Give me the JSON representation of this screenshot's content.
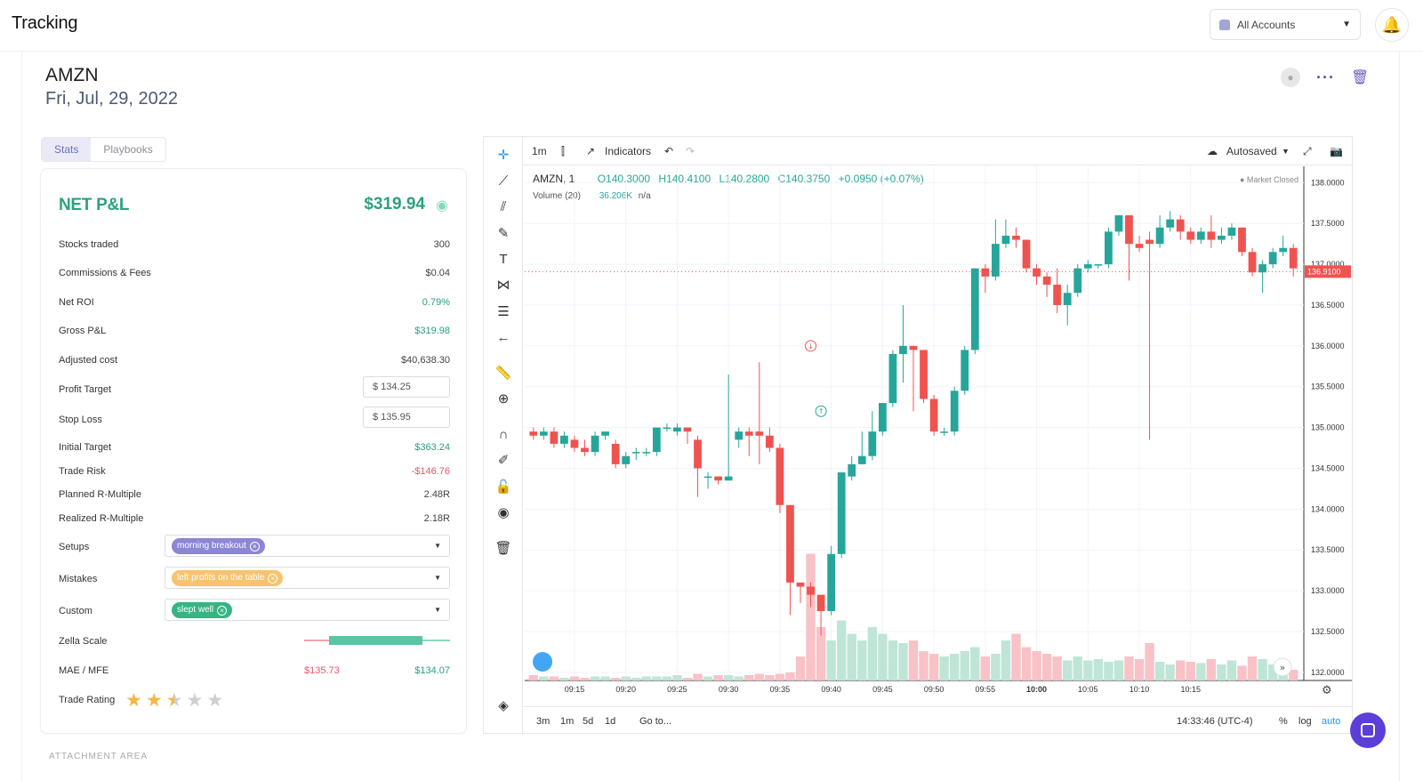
{
  "app": {
    "title": "Tracking"
  },
  "account": {
    "label": "All Accounts"
  },
  "trade": {
    "symbol": "AMZN",
    "date": "Fri, Jul, 29, 2022"
  },
  "tabs": [
    {
      "label": "Stats"
    },
    {
      "label": "Playbooks"
    }
  ],
  "stats": {
    "net_label": "NET P&L",
    "net_value": "$319.94",
    "rows": [
      {
        "label": "Stocks traded",
        "value": "300"
      },
      {
        "label": "Commissions & Fees",
        "value": "$0.04"
      },
      {
        "label": "Net ROI",
        "value": "0.79%"
      },
      {
        "label": "Gross P&L",
        "value": "$319.98"
      },
      {
        "label": "Adjusted cost",
        "value": "$40,638.30"
      },
      {
        "label": "Profit Target",
        "value": "$  134.25"
      },
      {
        "label": "Stop Loss",
        "value": "$  135.95"
      },
      {
        "label": "Initial Target",
        "value": "$363.24"
      },
      {
        "label": "Trade Risk",
        "value": "-$146.76"
      },
      {
        "label": "Planned R-Multiple",
        "value": "2.48R"
      },
      {
        "label": "Realized R-Multiple",
        "value": "2.18R"
      },
      {
        "label": "Setups",
        "value": "morning breakout"
      },
      {
        "label": "Mistakes",
        "value": "left profits on the table"
      },
      {
        "label": "Custom",
        "value": "slept well"
      },
      {
        "label": "Zella Scale",
        "value": ""
      },
      {
        "label": "MAE / MFE",
        "mae": "$135.73",
        "mfe": "$134.07"
      },
      {
        "label": "Trade Rating",
        "rating": 2.5
      }
    ],
    "attachment_label": "ATTACHMENT AREA"
  },
  "chart_toolbar": {
    "interval": "1m",
    "indicators": "Indicators",
    "autosaved": "Autosaved"
  },
  "chart_legend": {
    "symbol": "AMZN, 1",
    "open": "O140.3000",
    "high": "H140.4100",
    "low": "L140.2800",
    "close": "C140.3750",
    "change": "+0.0950 (+0.07%)",
    "volume_label": "Volume (20)",
    "volume_value": "36.206K",
    "volume_na": "n/a",
    "market_status": "● Market Closed"
  },
  "chart_bottom": {
    "ranges": [
      "3m",
      "1m",
      "5d",
      "1d"
    ],
    "goto": "Go to...",
    "time": "14:33:46 (UTC-4)",
    "pct": "%",
    "log": "log",
    "auto": "auto"
  },
  "chart_data": {
    "type": "candlestick",
    "last_price_label": "136.9100",
    "y_ticks": [
      "138.0000",
      "137.5000",
      "137.0000",
      "136.5000",
      "136.0000",
      "135.5000",
      "135.0000",
      "134.5000",
      "134.0000",
      "133.5000",
      "133.0000",
      "132.5000",
      "132.0000"
    ],
    "y_range": [
      131.9,
      138.2
    ],
    "x_ticks": [
      "09:15",
      "09:20",
      "09:25",
      "09:30",
      "09:35",
      "09:40",
      "09:45",
      "09:50",
      "09:55",
      "10:00",
      "10:05",
      "10:10",
      "10:15"
    ],
    "candles": [
      [
        134.95,
        134.9,
        135.0,
        134.85
      ],
      [
        134.9,
        134.95,
        135.0,
        134.85
      ],
      [
        134.95,
        134.8,
        135.0,
        134.75
      ],
      [
        134.8,
        134.9,
        134.95,
        134.75
      ],
      [
        134.85,
        134.75,
        134.9,
        134.7
      ],
      [
        134.75,
        134.7,
        134.85,
        134.65
      ],
      [
        134.7,
        134.9,
        134.95,
        134.65
      ],
      [
        134.9,
        134.95,
        134.95,
        134.85
      ],
      [
        134.8,
        134.55,
        134.85,
        134.5
      ],
      [
        134.55,
        134.65,
        134.7,
        134.5
      ],
      [
        134.7,
        134.7,
        134.75,
        134.6
      ],
      [
        134.7,
        134.7,
        134.75,
        134.65
      ],
      [
        134.7,
        135.0,
        135.0,
        134.65
      ],
      [
        135.0,
        135.0,
        135.05,
        134.95
      ],
      [
        134.95,
        135.0,
        135.05,
        134.9
      ],
      [
        135.0,
        134.95,
        135.0,
        134.8
      ],
      [
        134.85,
        134.5,
        134.9,
        134.15
      ],
      [
        134.4,
        134.4,
        134.45,
        134.25
      ],
      [
        134.4,
        134.35,
        134.4,
        134.3
      ],
      [
        134.35,
        134.4,
        135.65,
        134.35
      ],
      [
        134.85,
        134.95,
        135.0,
        134.75
      ],
      [
        134.95,
        134.9,
        135.0,
        134.65
      ],
      [
        134.95,
        134.9,
        135.8,
        134.55
      ],
      [
        134.9,
        134.75,
        135.0,
        134.7
      ],
      [
        134.75,
        134.05,
        134.8,
        133.95
      ],
      [
        134.05,
        133.1,
        134.05,
        132.7
      ],
      [
        133.1,
        133.05,
        133.1,
        132.85
      ],
      [
        133.05,
        132.95,
        133.1,
        132.8
      ],
      [
        132.95,
        132.75,
        132.95,
        132.45
      ],
      [
        132.75,
        133.45,
        133.55,
        132.7
      ],
      [
        133.45,
        134.45,
        134.45,
        133.4
      ],
      [
        134.4,
        134.55,
        134.65,
        134.35
      ],
      [
        134.55,
        134.65,
        134.95,
        134.55
      ],
      [
        134.65,
        134.95,
        135.2,
        134.6
      ],
      [
        134.95,
        135.3,
        135.3,
        134.9
      ],
      [
        135.3,
        135.9,
        135.95,
        135.25
      ],
      [
        135.9,
        136.0,
        136.5,
        135.55
      ],
      [
        136.0,
        135.95,
        136.0,
        135.2
      ],
      [
        135.95,
        135.35,
        135.95,
        135.3
      ],
      [
        135.35,
        134.95,
        135.4,
        134.9
      ],
      [
        134.95,
        134.95,
        135.0,
        134.9
      ],
      [
        134.95,
        135.45,
        135.5,
        134.9
      ],
      [
        135.45,
        135.95,
        136.0,
        135.4
      ],
      [
        135.95,
        136.95,
        136.95,
        135.9
      ],
      [
        136.95,
        136.85,
        137.0,
        136.65
      ],
      [
        136.85,
        137.25,
        137.55,
        136.8
      ],
      [
        137.25,
        137.35,
        137.55,
        137.2
      ],
      [
        137.35,
        137.3,
        137.45,
        137.2
      ],
      [
        137.3,
        136.95,
        137.3,
        136.9
      ],
      [
        136.95,
        136.85,
        137.0,
        136.75
      ],
      [
        136.85,
        136.75,
        136.9,
        136.6
      ],
      [
        136.75,
        136.5,
        136.95,
        136.4
      ],
      [
        136.5,
        136.65,
        136.75,
        136.25
      ],
      [
        136.65,
        136.95,
        137.0,
        136.6
      ],
      [
        136.95,
        137.0,
        137.05,
        136.9
      ],
      [
        137.0,
        137.0,
        137.0,
        136.95
      ],
      [
        137.0,
        137.4,
        137.45,
        136.95
      ],
      [
        137.4,
        137.6,
        137.6,
        137.35
      ],
      [
        137.6,
        137.25,
        137.6,
        136.8
      ],
      [
        137.25,
        137.2,
        137.35,
        137.15
      ],
      [
        137.3,
        137.25,
        137.4,
        134.85
      ],
      [
        137.25,
        137.45,
        137.6,
        137.2
      ],
      [
        137.45,
        137.55,
        137.65,
        137.4
      ],
      [
        137.55,
        137.4,
        137.6,
        137.3
      ],
      [
        137.4,
        137.3,
        137.45,
        137.25
      ],
      [
        137.3,
        137.4,
        137.45,
        137.25
      ],
      [
        137.4,
        137.3,
        137.6,
        137.2
      ],
      [
        137.3,
        137.35,
        137.45,
        137.25
      ],
      [
        137.35,
        137.45,
        137.5,
        137.3
      ],
      [
        137.45,
        137.15,
        137.45,
        137.1
      ],
      [
        137.15,
        136.9,
        137.2,
        136.85
      ],
      [
        136.9,
        137.0,
        137.05,
        136.65
      ],
      [
        137.0,
        137.15,
        137.2,
        136.95
      ],
      [
        137.15,
        137.2,
        137.35,
        137.1
      ],
      [
        137.2,
        136.95,
        137.25,
        136.85
      ]
    ],
    "volumes": [
      0.04,
      0.03,
      0.03,
      0.02,
      0.03,
      0.02,
      0.03,
      0.03,
      0.02,
      0.03,
      0.02,
      0.03,
      0.03,
      0.03,
      0.04,
      0.02,
      0.05,
      0.03,
      0.04,
      0.04,
      0.03,
      0.04,
      0.05,
      0.04,
      0.05,
      0.06,
      0.18,
      0.95,
      0.4,
      0.3,
      0.45,
      0.35,
      0.3,
      0.4,
      0.35,
      0.3,
      0.28,
      0.3,
      0.22,
      0.2,
      0.18,
      0.2,
      0.22,
      0.25,
      0.18,
      0.2,
      0.3,
      0.35,
      0.25,
      0.22,
      0.2,
      0.18,
      0.15,
      0.18,
      0.15,
      0.16,
      0.14,
      0.15,
      0.18,
      0.16,
      0.28,
      0.14,
      0.12,
      0.15,
      0.14,
      0.13,
      0.16,
      0.12,
      0.15,
      0.11,
      0.18,
      0.16,
      0.12,
      0.1,
      0.08
    ],
    "markers": [
      {
        "type": "sell",
        "index": 27,
        "price": 136.0
      },
      {
        "type": "buy",
        "index": 28,
        "price": 135.2
      }
    ]
  }
}
